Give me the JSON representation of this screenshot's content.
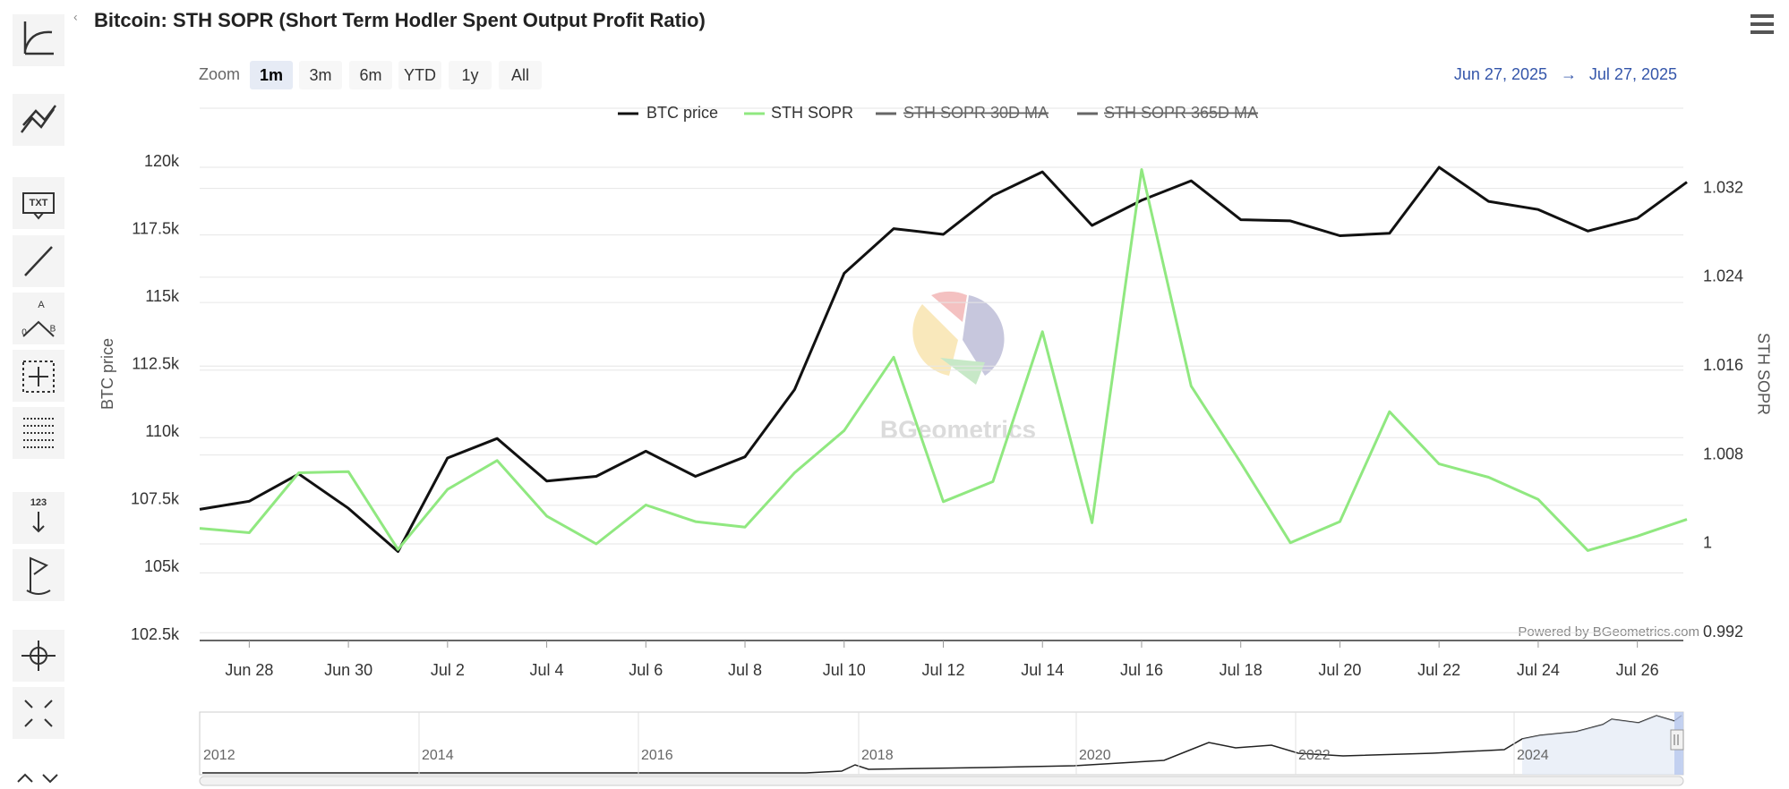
{
  "chart_data": {
    "type": "line",
    "title": "Bitcoin: STH SOPR (Short Term Hodler Spent Output Profit Ratio)",
    "categories": [
      null,
      "Jun 28",
      null,
      "Jun 30",
      null,
      "Jul 2",
      null,
      "Jul 4",
      null,
      "Jul 6",
      null,
      "Jul 8",
      null,
      "Jul 10",
      null,
      "Jul 12",
      null,
      "Jul 14",
      null,
      "Jul 16",
      null,
      "Jul 18",
      null,
      "Jul 20",
      null,
      "Jul 22",
      null,
      "Jul 24",
      null,
      "Jul 26",
      null
    ],
    "series": [
      {
        "name": "BTC price",
        "color": "#111111",
        "values": [
          107350,
          107650,
          108660,
          107390,
          105790,
          109250,
          109970,
          108400,
          108570,
          109500,
          108570,
          109290,
          111780,
          116080,
          117730,
          117520,
          118950,
          119830,
          117850,
          118780,
          119500,
          118060,
          118020,
          117470,
          117560,
          120000,
          118740,
          118440,
          117640,
          118110,
          119450
        ]
      },
      {
        "name": "STH SOPR",
        "color": "#90e880",
        "axis": "y2",
        "values": [
          1.0014,
          1.001,
          1.0064,
          1.0065,
          0.9995,
          1.0049,
          1.0075,
          1.0025,
          1.0,
          1.0035,
          1.002,
          1.0015,
          1.0064,
          1.0102,
          1.0168,
          1.0038,
          1.0056,
          1.0191,
          1.0019,
          1.0337,
          1.0142,
          1.0073,
          1.0001,
          1.002,
          1.0119,
          1.0072,
          1.006,
          1.004,
          0.9994,
          1.0007,
          1.0022
        ]
      }
    ],
    "hidden_series": [
      {
        "name": "STH SOPR 30D MA",
        "color": "#666666"
      },
      {
        "name": "STH SOPR 365D MA",
        "color": "#666666"
      }
    ],
    "ylabel": "BTC price",
    "y2label": "STH SOPR",
    "ylim": [
      102500,
      120000
    ],
    "yticks": [
      {
        "value": 102500,
        "label": "102.5k"
      },
      {
        "value": 105000,
        "label": "105k"
      },
      {
        "value": 107500,
        "label": "107.5k"
      },
      {
        "value": 110000,
        "label": "110k"
      },
      {
        "value": 112500,
        "label": "112.5k"
      },
      {
        "value": 115000,
        "label": "115k"
      },
      {
        "value": 117500,
        "label": "117.5k"
      },
      {
        "value": 120000,
        "label": "120k"
      }
    ],
    "y2lim": [
      0.9913,
      1.0339
    ],
    "y2ticks": [
      0.992,
      1,
      1.008,
      1.016,
      1.024,
      1.032
    ],
    "grid": true,
    "legend": "top",
    "credit": "Powered by BGeometrics.com",
    "watermark": "BGeometrics"
  },
  "zoom": {
    "label": "Zoom",
    "buttons": [
      "1m",
      "3m",
      "6m",
      "YTD",
      "1y",
      "All"
    ],
    "selected": "1m"
  },
  "range": {
    "from": "Jun 27, 2025",
    "arrow": "→",
    "to": "Jul 27, 2025"
  },
  "navigator": {
    "labels": [
      "2012",
      "2014",
      "2016",
      "2018",
      "2020",
      "2022",
      "2024"
    ]
  },
  "toolbar": {
    "text_icon": "TXT",
    "numbers_icon": "123",
    "point_a": "A",
    "point_0": "0",
    "point_b": "B"
  }
}
